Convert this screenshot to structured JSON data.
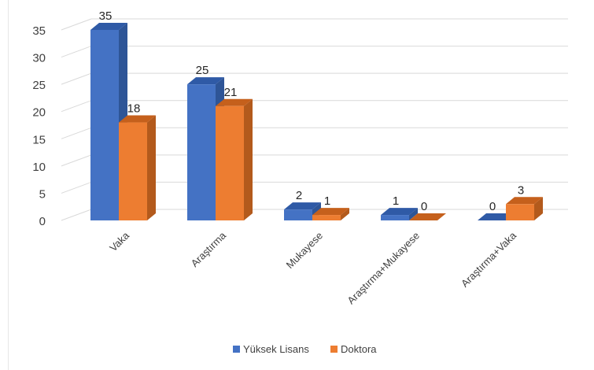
{
  "chart_data": {
    "type": "bar",
    "categories": [
      "Vaka",
      "Araştırma",
      "Mukayese",
      "Araştırma+Mukayese",
      "Araştırma+Vaka"
    ],
    "series": [
      {
        "name": "Yüksek Lisans",
        "values": [
          35,
          25,
          2,
          1,
          0
        ]
      },
      {
        "name": "Doktora",
        "values": [
          18,
          21,
          1,
          0,
          3
        ]
      }
    ],
    "ylim": [
      0,
      35
    ],
    "yticks": [
      0,
      5,
      10,
      15,
      20,
      25,
      30,
      35
    ],
    "grid": true,
    "legend": "bottom",
    "style": "3d-clustered"
  },
  "colors": {
    "series_front": [
      "#4472c4",
      "#ed7d31"
    ],
    "series_side": [
      "#2e5597",
      "#b35a1c"
    ],
    "series_top": [
      "#2f5aa6",
      "#c5601c"
    ],
    "grid": "#d9d9d9",
    "text": "#404040"
  }
}
